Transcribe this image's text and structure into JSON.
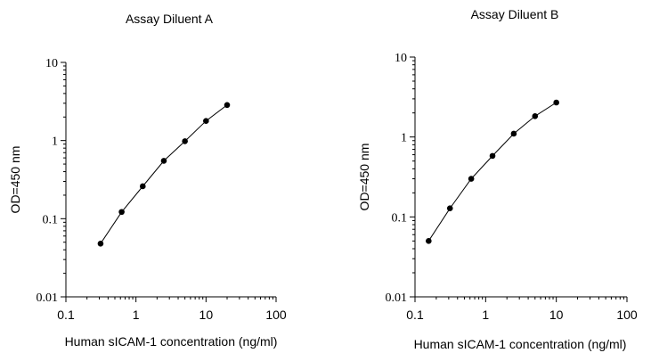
{
  "chart_data": [
    {
      "type": "line",
      "title": "Assay Diluent A",
      "xlabel": "Human sICAM-1 concentration (ng/ml)",
      "ylabel": "OD=450 nm",
      "xscale": "log",
      "yscale": "log",
      "xlim": [
        0.1,
        100
      ],
      "ylim": [
        0.01,
        10
      ],
      "xticks": [
        0.1,
        1,
        10,
        100
      ],
      "xtick_labels": [
        "0.1",
        "1",
        "10",
        "100"
      ],
      "yticks": [
        0.01,
        0.1,
        1,
        10
      ],
      "ytick_labels": [
        "0.01",
        "0.1",
        "1",
        "10"
      ],
      "grid": false,
      "series": [
        {
          "x": [
            0.3125,
            0.625,
            1.25,
            2.5,
            5,
            10,
            20
          ],
          "y": [
            0.048,
            0.122,
            0.26,
            0.55,
            0.98,
            1.78,
            2.85
          ]
        }
      ]
    },
    {
      "type": "line",
      "title": "Assay Diluent B",
      "xlabel": "Human sICAM-1 concentration (ng/ml)",
      "ylabel": "OD=450 nm",
      "xscale": "log",
      "yscale": "log",
      "xlim": [
        0.1,
        100
      ],
      "ylim": [
        0.01,
        10
      ],
      "xticks": [
        0.1,
        1,
        10,
        100
      ],
      "xtick_labels": [
        "0.1",
        "1",
        "10",
        "100"
      ],
      "yticks": [
        0.01,
        0.1,
        1,
        10
      ],
      "ytick_labels": [
        "0.01",
        "0.1",
        "1",
        "10"
      ],
      "grid": false,
      "series": [
        {
          "x": [
            0.156,
            0.3125,
            0.625,
            1.25,
            2.5,
            5,
            10
          ],
          "y": [
            0.05,
            0.128,
            0.3,
            0.58,
            1.1,
            1.82,
            2.7
          ]
        }
      ]
    }
  ]
}
